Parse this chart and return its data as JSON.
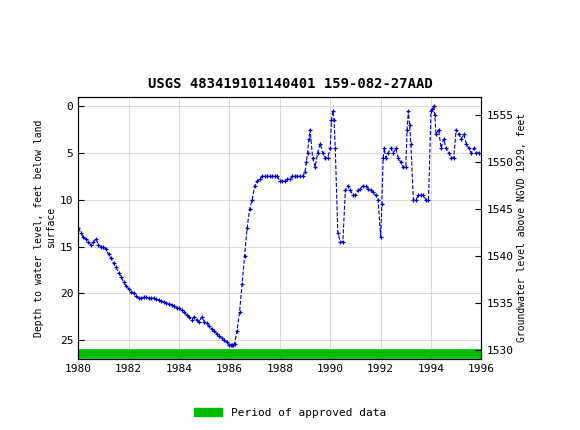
{
  "title": "USGS 483419101140401 159-082-27AAD",
  "ylabel_left": "Depth to water level, feet below land\nsurface",
  "ylabel_right": "Groundwater level above NGVD 1929, feet",
  "xlim": [
    1980,
    1996
  ],
  "ylim_left": [
    27,
    -1
  ],
  "ylim_right": [
    1529,
    1557
  ],
  "xticks": [
    1980,
    1982,
    1984,
    1986,
    1988,
    1990,
    1992,
    1994,
    1996
  ],
  "yticks_left": [
    0,
    5,
    10,
    15,
    20,
    25
  ],
  "yticks_right": [
    1530,
    1535,
    1540,
    1545,
    1550,
    1555
  ],
  "line_color": "#0000cc",
  "approved_bar_color": "#00bb00",
  "header_bg_color": "#006633",
  "legend_label": "Period of approved data",
  "data_x": [
    1980.0,
    1980.1,
    1980.2,
    1980.3,
    1980.4,
    1980.5,
    1980.6,
    1980.7,
    1980.8,
    1980.9,
    1981.0,
    1981.1,
    1981.2,
    1981.3,
    1981.4,
    1981.5,
    1981.6,
    1981.7,
    1981.8,
    1981.9,
    1982.0,
    1982.1,
    1982.2,
    1982.3,
    1982.4,
    1982.5,
    1982.6,
    1982.7,
    1982.8,
    1982.9,
    1983.0,
    1983.1,
    1983.2,
    1983.3,
    1983.4,
    1983.5,
    1983.6,
    1983.7,
    1983.8,
    1983.9,
    1984.0,
    1984.1,
    1984.2,
    1984.3,
    1984.4,
    1984.5,
    1984.6,
    1984.7,
    1984.8,
    1984.9,
    1985.0,
    1985.1,
    1985.2,
    1985.3,
    1985.4,
    1985.5,
    1985.6,
    1985.7,
    1985.8,
    1985.9,
    1986.0,
    1986.05,
    1986.1,
    1986.15,
    1986.2,
    1986.3,
    1986.4,
    1986.5,
    1986.6,
    1986.7,
    1986.8,
    1986.9,
    1987.0,
    1987.1,
    1987.2,
    1987.3,
    1987.4,
    1987.5,
    1987.6,
    1987.7,
    1987.8,
    1987.9,
    1988.0,
    1988.1,
    1988.2,
    1988.3,
    1988.4,
    1988.5,
    1988.6,
    1988.7,
    1988.8,
    1988.9,
    1989.0,
    1989.05,
    1989.1,
    1989.15,
    1989.2,
    1989.3,
    1989.4,
    1989.5,
    1989.6,
    1989.7,
    1989.8,
    1989.9,
    1990.0,
    1990.05,
    1990.1,
    1990.15,
    1990.2,
    1990.3,
    1990.4,
    1990.5,
    1990.6,
    1990.7,
    1990.8,
    1990.9,
    1991.0,
    1991.1,
    1991.2,
    1991.3,
    1991.4,
    1991.5,
    1991.6,
    1991.7,
    1991.8,
    1991.9,
    1992.0,
    1992.05,
    1992.1,
    1992.15,
    1992.2,
    1992.3,
    1992.4,
    1992.5,
    1992.6,
    1992.7,
    1992.8,
    1992.9,
    1993.0,
    1993.05,
    1993.1,
    1993.15,
    1993.2,
    1993.3,
    1993.4,
    1993.5,
    1993.6,
    1993.7,
    1993.8,
    1993.9,
    1994.0,
    1994.05,
    1994.1,
    1994.15,
    1994.2,
    1994.3,
    1994.4,
    1994.5,
    1994.6,
    1994.7,
    1994.8,
    1994.9,
    1995.0,
    1995.1,
    1995.2,
    1995.3,
    1995.4,
    1995.5,
    1995.6,
    1995.7,
    1995.8,
    1995.9
  ],
  "data_y": [
    13.0,
    13.5,
    14.0,
    14.2,
    14.5,
    14.8,
    14.5,
    14.2,
    14.8,
    15.0,
    15.0,
    15.3,
    15.8,
    16.2,
    16.8,
    17.2,
    17.8,
    18.2,
    18.8,
    19.2,
    19.5,
    19.8,
    20.0,
    20.3,
    20.5,
    20.5,
    20.4,
    20.4,
    20.5,
    20.5,
    20.5,
    20.6,
    20.7,
    20.8,
    20.9,
    21.0,
    21.1,
    21.2,
    21.3,
    21.5,
    21.5,
    21.8,
    22.0,
    22.3,
    22.5,
    22.8,
    22.5,
    22.8,
    23.0,
    22.5,
    23.0,
    23.2,
    23.5,
    23.8,
    24.0,
    24.3,
    24.5,
    24.8,
    25.0,
    25.2,
    25.5,
    25.5,
    25.5,
    25.5,
    25.4,
    24.0,
    22.0,
    19.0,
    16.0,
    13.0,
    11.0,
    10.0,
    8.5,
    8.0,
    7.8,
    7.5,
    7.5,
    7.5,
    7.5,
    7.5,
    7.5,
    7.5,
    8.0,
    8.0,
    8.0,
    7.8,
    7.8,
    7.5,
    7.5,
    7.5,
    7.5,
    7.5,
    7.0,
    6.0,
    5.0,
    3.5,
    2.5,
    5.5,
    6.5,
    5.0,
    4.0,
    5.0,
    5.5,
    5.5,
    4.5,
    1.5,
    0.5,
    1.5,
    4.5,
    13.5,
    14.5,
    14.5,
    9.0,
    8.5,
    9.0,
    9.5,
    9.5,
    9.0,
    8.8,
    8.5,
    8.5,
    8.8,
    9.0,
    9.2,
    9.5,
    10.0,
    14.0,
    10.5,
    5.5,
    4.5,
    5.5,
    5.0,
    4.5,
    5.0,
    4.5,
    5.5,
    6.0,
    6.5,
    6.5,
    2.5,
    0.5,
    2.0,
    4.0,
    10.0,
    10.0,
    9.5,
    9.5,
    9.5,
    10.0,
    10.0,
    0.5,
    0.3,
    0.0,
    1.0,
    3.0,
    2.5,
    4.5,
    3.5,
    4.5,
    5.0,
    5.5,
    5.5,
    2.5,
    3.0,
    3.5,
    3.0,
    4.0,
    4.5,
    5.0,
    4.5,
    5.0,
    5.0
  ]
}
